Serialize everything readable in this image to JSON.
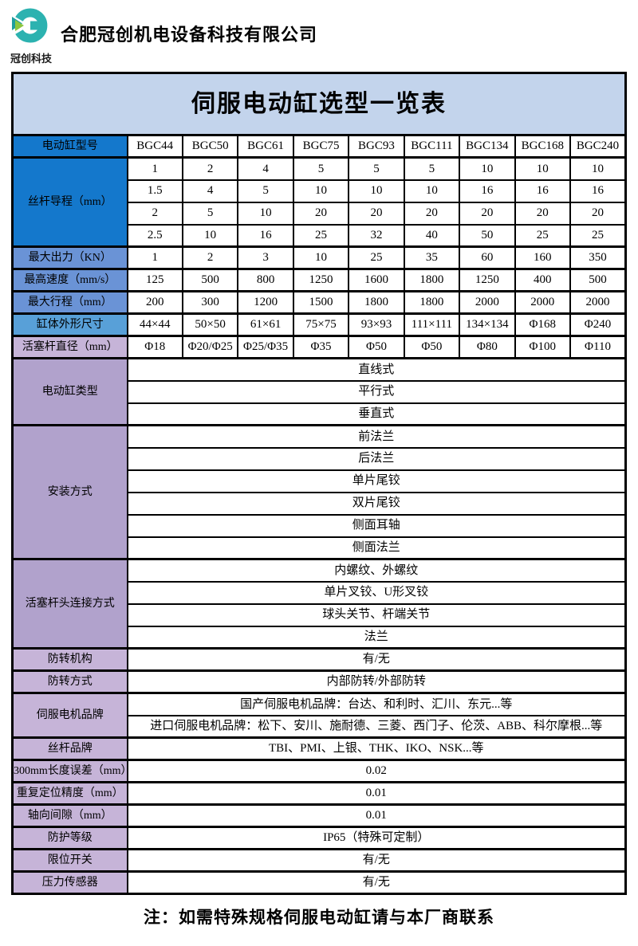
{
  "header": {
    "company_name": "合肥冠创机电设备科技有限公司",
    "brand_sub": "冠创科技",
    "logo": {
      "g_color": "#2cb2b0",
      "g_dark": "#1e9e9e",
      "arrow_color": "#8cc63f"
    }
  },
  "colors": {
    "title_band": "#c3d4ec",
    "blue_strong": "#1478cc",
    "blue_mid": "#6a93d6",
    "blue_sky": "#58a0d8",
    "purple": "#b1a2cc",
    "lavender": "#c6b4d8",
    "border": "#000000"
  },
  "table": {
    "title": "伺服电动缸选型一览表",
    "model_row": {
      "label": "电动缸型号",
      "tone": "strong",
      "models": [
        "BGC44",
        "BGC50",
        "BGC61",
        "BGC75",
        "BGC93",
        "BGC111",
        "BGC134",
        "BGC168",
        "BGC240"
      ]
    },
    "groups": [
      {
        "label": "丝杆导程（mm）",
        "tone": "strong",
        "rows": [
          [
            "1",
            "2",
            "4",
            "5",
            "5",
            "5",
            "10",
            "10",
            "10"
          ],
          [
            "1.5",
            "4",
            "5",
            "10",
            "10",
            "10",
            "16",
            "16",
            "16"
          ],
          [
            "2",
            "5",
            "10",
            "20",
            "20",
            "20",
            "20",
            "20",
            "20"
          ],
          [
            "2.5",
            "10",
            "16",
            "25",
            "32",
            "40",
            "50",
            "25",
            "25"
          ]
        ]
      },
      {
        "label": "最大出力（KN）",
        "tone": "mid",
        "rows": [
          [
            "1",
            "2",
            "3",
            "10",
            "25",
            "35",
            "60",
            "160",
            "350"
          ]
        ]
      },
      {
        "label": "最高速度（mm/s）",
        "tone": "mid",
        "rows": [
          [
            "125",
            "500",
            "800",
            "1250",
            "1600",
            "1800",
            "1250",
            "400",
            "500"
          ]
        ]
      },
      {
        "label": "最大行程（mm）",
        "tone": "mid",
        "rows": [
          [
            "200",
            "300",
            "1200",
            "1500",
            "1800",
            "1800",
            "2000",
            "2000",
            "2000"
          ]
        ]
      },
      {
        "label": "缸体外形尺寸",
        "tone": "sky",
        "rows": [
          [
            "44×44",
            "50×50",
            "61×61",
            "75×75",
            "93×93",
            "111×111",
            "134×134",
            "Φ168",
            "Φ240"
          ]
        ]
      },
      {
        "label": "活塞杆直径（mm）",
        "tone": "lavender",
        "rows": [
          [
            "Φ18",
            "Φ20/Φ25",
            "Φ25/Φ35",
            "Φ35",
            "Φ50",
            "Φ50",
            "Φ80",
            "Φ100",
            "Φ110"
          ]
        ]
      },
      {
        "label": "电动缸类型",
        "tone": "purple",
        "rows": [
          [
            "直线式"
          ],
          [
            "平行式"
          ],
          [
            "垂直式"
          ]
        ]
      },
      {
        "label": "安装方式",
        "tone": "purple",
        "rows": [
          [
            "前法兰"
          ],
          [
            "后法兰"
          ],
          [
            "单片尾铰"
          ],
          [
            "双片尾铰"
          ],
          [
            "侧面耳轴"
          ],
          [
            "侧面法兰"
          ]
        ]
      },
      {
        "label": "活塞杆头连接方式",
        "tone": "purple",
        "rows": [
          [
            "内螺纹、外螺纹"
          ],
          [
            "单片叉铰、U形叉铰"
          ],
          [
            "球头关节、杆端关节"
          ],
          [
            "法兰"
          ]
        ]
      },
      {
        "label": "防转机构",
        "tone": "lavender",
        "rows": [
          [
            "有/无"
          ]
        ]
      },
      {
        "label": "防转方式",
        "tone": "lavender",
        "rows": [
          [
            "内部防转/外部防转"
          ]
        ]
      },
      {
        "label": "伺服电机品牌",
        "tone": "lavender",
        "rows": [
          [
            "国产伺服电机品牌：台达、和利时、汇川、东元...等"
          ],
          [
            "进口伺服电机品牌：松下、安川、施耐德、三菱、西门子、伦茨、ABB、科尔摩根...等"
          ]
        ]
      },
      {
        "label": "丝杆品牌",
        "tone": "lavender",
        "rows": [
          [
            "TBI、PMI、上银、THK、IKO、NSK...等"
          ]
        ]
      },
      {
        "label": "300mm长度误差（mm）",
        "tone": "lavender",
        "rows": [
          [
            "0.02"
          ]
        ]
      },
      {
        "label": "重复定位精度（mm）",
        "tone": "lavender",
        "rows": [
          [
            "0.01"
          ]
        ]
      },
      {
        "label": "轴向间隙（mm）",
        "tone": "lavender",
        "rows": [
          [
            "0.01"
          ]
        ]
      },
      {
        "label": "防护等级",
        "tone": "lavender",
        "rows": [
          [
            "IP65（特殊可定制）"
          ]
        ]
      },
      {
        "label": "限位开关",
        "tone": "lavender",
        "rows": [
          [
            "有/无"
          ]
        ]
      },
      {
        "label": "压力传感器",
        "tone": "lavender",
        "rows": [
          [
            "有/无"
          ]
        ]
      }
    ]
  },
  "note": "注：如需特殊规格伺服电动缸请与本厂商联系"
}
